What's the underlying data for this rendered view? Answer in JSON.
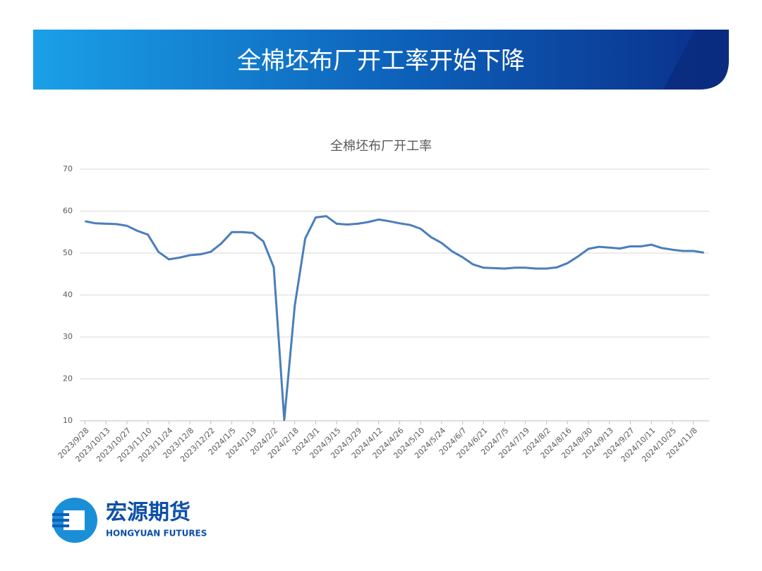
{
  "header": {
    "title": "全棉坯布厂开工率开始下降"
  },
  "chart_data": {
    "type": "line",
    "title": "全棉坯布厂开工率",
    "color": "#4a7ebb",
    "grid": true,
    "categories": [
      "2023/9/28",
      null,
      "2023/10/13",
      null,
      "2023/10/27",
      null,
      "2023/11/10",
      null,
      "2023/11/24",
      null,
      "2023/12/8",
      null,
      "2023/12/22",
      null,
      "2024/1/5",
      null,
      "2024/1/19",
      null,
      "2024/2/2",
      null,
      "2024/2/18",
      null,
      "2024/3/1",
      null,
      "2024/3/15",
      null,
      "2024/3/29",
      null,
      "2024/4/12",
      null,
      "2024/4/26",
      null,
      "2024/5/10",
      null,
      "2024/5/24",
      null,
      "2024/6/7",
      null,
      "2024/6/21",
      null,
      "2024/7/5",
      null,
      "2024/7/19",
      null,
      "2024/8/2",
      null,
      "2024/8/16",
      null,
      "2024/8/30",
      null,
      "2024/9/13",
      null,
      "2024/9/27",
      null,
      "2024/10/11",
      null,
      "2024/10/25",
      null,
      "2024/11/8",
      null
    ],
    "values": [
      57.6,
      57.1,
      57.0,
      56.9,
      56.5,
      55.3,
      54.4,
      50.3,
      48.5,
      48.9,
      49.5,
      49.7,
      50.3,
      52.3,
      55.0,
      55.0,
      54.8,
      52.8,
      46.6,
      10.2,
      37.5,
      53.5,
      58.5,
      58.8,
      57.0,
      56.8,
      57.0,
      57.4,
      58.0,
      57.6,
      57.1,
      56.7,
      55.8,
      53.8,
      52.4,
      50.4,
      49.0,
      47.3,
      46.5,
      46.4,
      46.3,
      46.5,
      46.5,
      46.3,
      46.3,
      46.6,
      47.6,
      49.2,
      51.0,
      51.5,
      51.3,
      51.1,
      51.6,
      51.6,
      52.0,
      51.2,
      50.8,
      50.5,
      50.5,
      50.1
    ],
    "ylim": [
      10,
      70
    ],
    "yticks": [
      10,
      20,
      30,
      40,
      50,
      60,
      70
    ]
  },
  "logo": {
    "name": "宏源期货",
    "english": "HONGYUAN FUTURES"
  }
}
